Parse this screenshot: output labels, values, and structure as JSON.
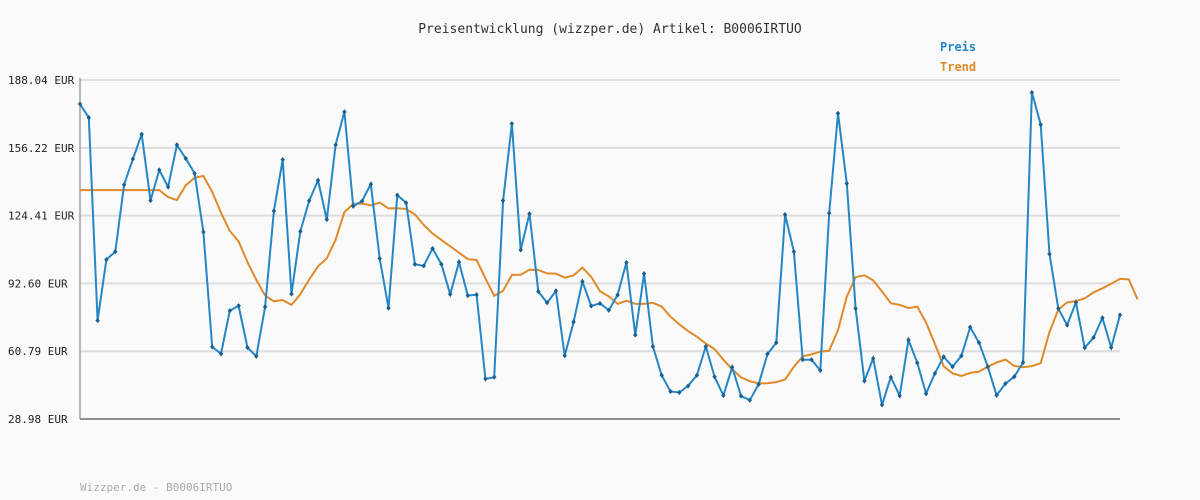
{
  "chart_data": {
    "type": "line",
    "title": "Preisentwicklung (wizzper.de) Artikel: B0006IRTUO",
    "footer": "Wizzper.de - B0006IRTUO",
    "ylim": [
      28.98,
      188.04
    ],
    "yticks": [
      "188.04 EUR",
      "156.22 EUR",
      "124.41 EUR",
      "92.60 EUR",
      "60.79 EUR",
      "28.98 EUR"
    ],
    "ytick_values": [
      188.04,
      156.22,
      124.41,
      92.6,
      60.79,
      28.98
    ],
    "grid": true,
    "legend_position": "top-right",
    "colors": {
      "price": "#2586c6",
      "trend": "#e08a2a",
      "grid": "#dddddd",
      "axis": "#777777"
    },
    "series": [
      {
        "name": "Preis",
        "values": [
          176.8,
          170.4,
          75.2,
          103.8,
          107.5,
          138.9,
          151.0,
          162.6,
          131.5,
          145.8,
          137.9,
          157.6,
          151.2,
          144.2,
          116.7,
          62.8,
          59.6,
          79.8,
          82.1,
          62.5,
          58.4,
          81.6,
          126.6,
          150.7,
          87.6,
          117.0,
          131.4,
          141.0,
          122.6,
          157.6,
          173.1,
          128.8,
          131.2,
          139.2,
          104.3,
          81.0,
          134.0,
          130.4,
          101.6,
          100.8,
          109.0,
          101.6,
          87.5,
          102.6,
          86.9,
          87.3,
          47.8,
          48.6,
          131.5,
          167.6,
          108.3,
          125.3,
          88.8,
          83.5,
          89.1,
          58.7,
          74.5,
          93.5,
          82.0,
          83.2,
          80.0,
          87.2,
          102.4,
          68.4,
          97.2,
          63.0,
          49.5,
          41.9,
          41.4,
          44.5,
          49.5,
          63.0,
          48.8,
          40.0,
          53.3,
          39.8,
          37.8,
          45.2,
          59.5,
          64.8,
          124.9,
          107.5,
          56.8,
          56.8,
          51.8,
          125.6,
          172.4,
          139.5,
          80.9,
          46.8,
          57.4,
          35.6,
          48.6,
          39.9,
          66.1,
          55.3,
          40.9,
          50.4,
          58.2,
          53.5,
          58.6,
          72.1,
          64.8,
          53.5,
          40.1,
          45.6,
          48.8,
          55.5,
          182.2,
          167.1,
          106.4,
          80.8,
          73.0,
          83.7,
          62.4,
          67.2,
          76.4,
          62.5,
          77.8
        ]
      },
      {
        "name": "Trend",
        "values": [
          136.4,
          136.4,
          136.4,
          136.4,
          136.4,
          136.4,
          136.4,
          136.4,
          136.4,
          136.4,
          133.1,
          131.7,
          138.7,
          142.2,
          143.0,
          135.5,
          125.8,
          117.2,
          112.3,
          102.6,
          94.3,
          86.9,
          84.2,
          84.8,
          82.5,
          87.5,
          94.5,
          100.6,
          104.4,
          113.1,
          126.0,
          129.9,
          130.1,
          129.2,
          130.5,
          127.8,
          127.9,
          127.5,
          125.0,
          120.0,
          116.0,
          113.0,
          110.0,
          107.0,
          104.0,
          103.6,
          95.0,
          86.8,
          89.2,
          96.6,
          96.7,
          99.0,
          98.9,
          97.3,
          97.2,
          95.3,
          96.4,
          100.0,
          95.7,
          88.9,
          86.5,
          83.0,
          84.5,
          83.0,
          83.0,
          83.5,
          81.7,
          77.0,
          73.4,
          70.2,
          67.6,
          64.4,
          61.8,
          56.8,
          52.3,
          48.5,
          46.7,
          45.7,
          45.8,
          46.3,
          47.5,
          53.5,
          58.4,
          59.3,
          60.6,
          61.0,
          70.7,
          86.4,
          95.5,
          96.4,
          94.0,
          88.8,
          83.3,
          82.5,
          81.0,
          81.7,
          74.2,
          64.2,
          53.7,
          50.4,
          49.2,
          50.6,
          51.2,
          53.5,
          55.5,
          56.9,
          53.9,
          53.3,
          53.8,
          55.2,
          69.8,
          80.3,
          83.7,
          84.3,
          85.6,
          88.4,
          90.3,
          92.4,
          94.7,
          94.5,
          85.1
        ]
      }
    ]
  }
}
